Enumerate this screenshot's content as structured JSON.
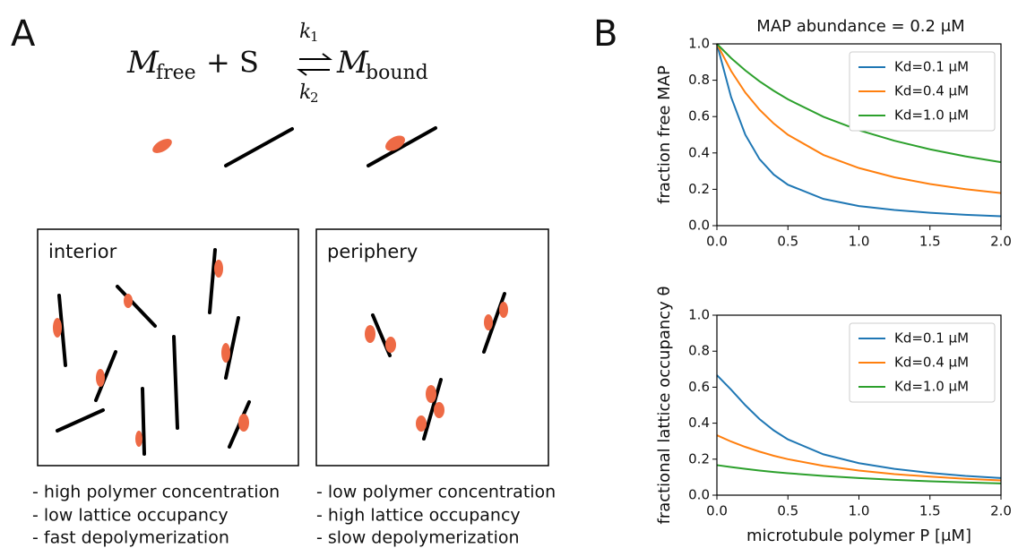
{
  "panel_a": {
    "letter": "A",
    "equation": {
      "left": "M",
      "left_sub": "free",
      "middle": "+ S",
      "right": "M",
      "right_sub": "bound",
      "k_forward": "k",
      "k_forward_sub": "1",
      "k_backward": "k",
      "k_backward_sub": "2"
    },
    "boxes": [
      {
        "label": "interior",
        "notes": [
          "- high polymer concentration",
          "- low lattice occupancy",
          "- fast depolymerization"
        ]
      },
      {
        "label": "periphery",
        "notes": [
          "- low polymer concentration",
          "- high lattice occupancy",
          "- slow depolymerization"
        ]
      }
    ]
  },
  "panel_b": {
    "letter": "B"
  },
  "chart_data": [
    {
      "type": "line",
      "title": "MAP abundance = 0.2 μM",
      "y_label": "fraction free MAP",
      "x": [
        0,
        0.1,
        0.2,
        0.3,
        0.4,
        0.5,
        0.75,
        1,
        1.25,
        1.5,
        1.75,
        2
      ],
      "series": [
        {
          "name": "Kd=0.1 μM",
          "color": "#1f77b4",
          "values": [
            1,
            0.707,
            0.5,
            0.366,
            0.281,
            0.225,
            0.147,
            0.108,
            0.086,
            0.071,
            0.06,
            0.052
          ]
        },
        {
          "name": "Kd=0.4 μM",
          "color": "#ff7f0e",
          "values": [
            1,
            0.851,
            0.732,
            0.638,
            0.562,
            0.5,
            0.389,
            0.317,
            0.266,
            0.229,
            0.201,
            0.179
          ]
        },
        {
          "name": "Kd=1.0 μM",
          "color": "#2ca02c",
          "values": [
            1,
            0.922,
            0.854,
            0.794,
            0.742,
            0.695,
            0.599,
            0.525,
            0.467,
            0.42,
            0.381,
            0.349
          ]
        }
      ],
      "xlim": [
        0,
        2
      ],
      "ylim": [
        0,
        1
      ],
      "xticks": [
        {
          "value": 0,
          "label": "0.0"
        },
        {
          "value": 0.5,
          "label": "0.5"
        },
        {
          "value": 1,
          "label": "1.0"
        },
        {
          "value": 1.5,
          "label": "1.5"
        },
        {
          "value": 2,
          "label": "2.0"
        }
      ],
      "yticks": [
        {
          "value": 0,
          "label": "0.0"
        },
        {
          "value": 0.2,
          "label": "0.2"
        },
        {
          "value": 0.4,
          "label": "0.4"
        },
        {
          "value": 0.6,
          "label": "0.6"
        },
        {
          "value": 0.8,
          "label": "0.8"
        },
        {
          "value": 1,
          "label": "1.0"
        }
      ],
      "legend": "upper right"
    },
    {
      "type": "line",
      "y_label": "fractional lattice occupancy θ",
      "x_label": "microtubule polymer P [μM]",
      "x": [
        0,
        0.1,
        0.2,
        0.3,
        0.4,
        0.5,
        0.75,
        1,
        1.25,
        1.5,
        1.75,
        2
      ],
      "series": [
        {
          "name": "Kd=0.1 μM",
          "color": "#1f77b4",
          "values": [
            0.667,
            0.586,
            0.5,
            0.423,
            0.36,
            0.31,
            0.227,
            0.178,
            0.146,
            0.124,
            0.107,
            0.095
          ]
        },
        {
          "name": "Kd=0.4 μM",
          "color": "#ff7f0e",
          "values": [
            0.333,
            0.298,
            0.268,
            0.242,
            0.219,
            0.2,
            0.163,
            0.137,
            0.117,
            0.103,
            0.091,
            0.082
          ]
        },
        {
          "name": "Kd=1.0 μM",
          "color": "#2ca02c",
          "values": [
            0.167,
            0.156,
            0.146,
            0.137,
            0.129,
            0.122,
            0.107,
            0.095,
            0.085,
            0.077,
            0.071,
            0.065
          ]
        }
      ],
      "xlim": [
        0,
        2
      ],
      "ylim": [
        0,
        1
      ],
      "xticks": [
        {
          "value": 0,
          "label": "0.0"
        },
        {
          "value": 0.5,
          "label": "0.5"
        },
        {
          "value": 1,
          "label": "1.0"
        },
        {
          "value": 1.5,
          "label": "1.5"
        },
        {
          "value": 2,
          "label": "2.0"
        }
      ],
      "yticks": [
        {
          "value": 0,
          "label": "0.0"
        },
        {
          "value": 0.2,
          "label": "0.2"
        },
        {
          "value": 0.4,
          "label": "0.4"
        },
        {
          "value": 0.6,
          "label": "0.6"
        },
        {
          "value": 0.8,
          "label": "0.8"
        },
        {
          "value": 1,
          "label": "1.0"
        }
      ],
      "legend": "upper right"
    }
  ]
}
